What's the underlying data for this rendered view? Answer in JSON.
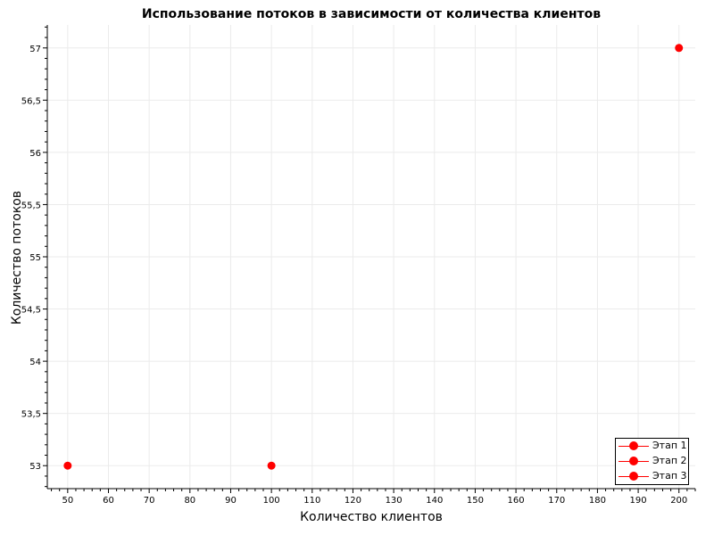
{
  "chart_data": {
    "type": "scatter",
    "title": "Использование потоков в зависимости от количества клиентов",
    "xlabel": "Количество клиентов",
    "ylabel": "Количество потоков",
    "xlim": [
      45,
      204
    ],
    "ylim": [
      52.78,
      57.22
    ],
    "x_ticks": [
      50,
      60,
      70,
      80,
      90,
      100,
      110,
      120,
      130,
      140,
      150,
      160,
      170,
      180,
      190,
      200
    ],
    "x_tick_labels": [
      "50",
      "60",
      "70",
      "80",
      "90",
      "100",
      "110",
      "120",
      "130",
      "140",
      "150",
      "160",
      "170",
      "180",
      "190",
      "200"
    ],
    "y_ticks": [
      53,
      53.5,
      54,
      54.5,
      55,
      55.5,
      56,
      56.5,
      57
    ],
    "y_tick_labels": [
      "53",
      "53,5",
      "54",
      "54,5",
      "55",
      "55,5",
      "56",
      "56,5",
      "57"
    ],
    "grid": true,
    "legend_position": "bottom-right",
    "series": [
      {
        "name": "Этап 1",
        "color": "#ff0000",
        "points": [
          [
            50,
            53
          ]
        ]
      },
      {
        "name": "Этап 2",
        "color": "#ff0000",
        "points": [
          [
            100,
            53
          ]
        ]
      },
      {
        "name": "Этап 3",
        "color": "#ff0000",
        "points": [
          [
            200,
            57
          ]
        ]
      }
    ]
  }
}
